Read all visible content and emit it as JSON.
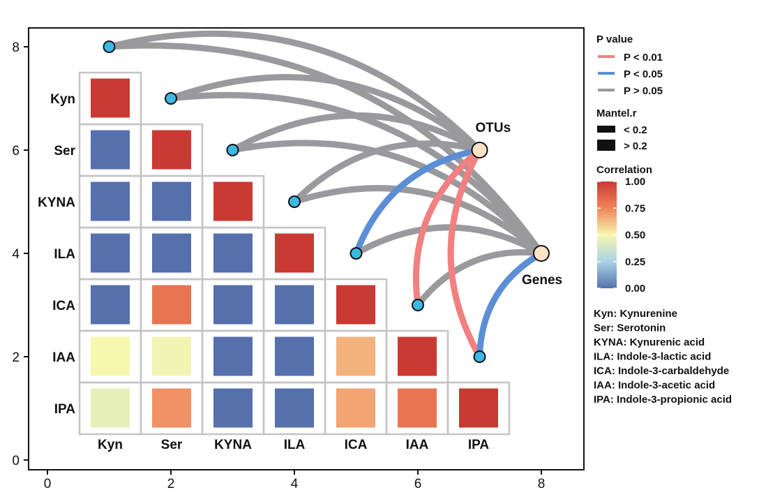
{
  "chart_data": {
    "type": "heatmap",
    "axes": {
      "x_ticks": [
        "0",
        "2",
        "4",
        "6",
        "8"
      ],
      "y_ticks": [
        "0",
        "2",
        "4",
        "6",
        "8"
      ],
      "xlim": [
        -0.5,
        8.5
      ],
      "ylim": [
        -0.1,
        8.4
      ]
    },
    "variables": [
      "Kyn",
      "Ser",
      "KYNA",
      "ILA",
      "ICA",
      "IAA",
      "IPA"
    ],
    "correlation_matrix": [
      {
        "row": "Kyn",
        "values": [
          1.0
        ]
      },
      {
        "row": "Ser",
        "values": [
          0.0,
          1.0
        ]
      },
      {
        "row": "KYNA",
        "values": [
          0.0,
          0.0,
          1.0
        ]
      },
      {
        "row": "ILA",
        "values": [
          0.0,
          0.0,
          0.0,
          1.0
        ]
      },
      {
        "row": "ICA",
        "values": [
          0.0,
          0.8,
          0.0,
          0.0,
          1.0
        ]
      },
      {
        "row": "IAA",
        "values": [
          0.5,
          0.48,
          0.0,
          0.0,
          0.65,
          1.0
        ]
      },
      {
        "row": "IPA",
        "values": [
          0.45,
          0.72,
          0.0,
          0.0,
          0.68,
          0.8,
          1.0
        ]
      }
    ],
    "metabolite_nodes": [
      {
        "name": "Kyn",
        "x": 1,
        "y": 8
      },
      {
        "name": "Ser",
        "x": 2,
        "y": 7
      },
      {
        "name": "KYNA",
        "x": 3,
        "y": 6
      },
      {
        "name": "ILA",
        "x": 4,
        "y": 5
      },
      {
        "name": "ICA",
        "x": 5,
        "y": 4
      },
      {
        "name": "IAA",
        "x": 6,
        "y": 3
      },
      {
        "name": "IPA",
        "x": 7,
        "y": 2
      }
    ],
    "target_nodes": [
      {
        "name": "OTUs",
        "x": 7,
        "y": 6
      },
      {
        "name": "Genes",
        "x": 8,
        "y": 4
      }
    ],
    "links": [
      {
        "from": "Kyn",
        "to": "OTUs",
        "p": "P > 0.05",
        "r": "> 0.2"
      },
      {
        "from": "Kyn",
        "to": "Genes",
        "p": "P > 0.05",
        "r": "> 0.2"
      },
      {
        "from": "Ser",
        "to": "OTUs",
        "p": "P > 0.05",
        "r": "> 0.2"
      },
      {
        "from": "Ser",
        "to": "Genes",
        "p": "P > 0.05",
        "r": "> 0.2"
      },
      {
        "from": "KYNA",
        "to": "OTUs",
        "p": "P > 0.05",
        "r": "> 0.2"
      },
      {
        "from": "KYNA",
        "to": "Genes",
        "p": "P > 0.05",
        "r": "> 0.2"
      },
      {
        "from": "ILA",
        "to": "OTUs",
        "p": "P > 0.05",
        "r": "> 0.2"
      },
      {
        "from": "ILA",
        "to": "Genes",
        "p": "P > 0.05",
        "r": "> 0.2"
      },
      {
        "from": "ICA",
        "to": "OTUs",
        "p": "P < 0.05",
        "r": "> 0.2"
      },
      {
        "from": "ICA",
        "to": "Genes",
        "p": "P > 0.05",
        "r": "> 0.2"
      },
      {
        "from": "IAA",
        "to": "OTUs",
        "p": "P < 0.01",
        "r": "> 0.2"
      },
      {
        "from": "IAA",
        "to": "Genes",
        "p": "P > 0.05",
        "r": "> 0.2"
      },
      {
        "from": "IPA",
        "to": "OTUs",
        "p": "P < 0.01",
        "r": "> 0.2"
      },
      {
        "from": "IPA",
        "to": "Genes",
        "p": "P < 0.05",
        "r": "> 0.2"
      }
    ],
    "legend": {
      "placement": "right",
      "p_value_title": "P value",
      "p_value_items": [
        {
          "label": "P < 0.01",
          "color": "#f28080"
        },
        {
          "label": "P < 0.05",
          "color": "#5b8ed6"
        },
        {
          "label": "P > 0.05",
          "color": "#9a999e"
        }
      ],
      "mantel_title": "Mantel.r",
      "mantel_items": [
        {
          "label": "< 0.2",
          "width": "thin"
        },
        {
          "label": "> 0.2",
          "width": "thick"
        }
      ],
      "correlation_title": "Correlation",
      "colorbar_ticks": [
        "1.00",
        "0.75",
        "0.50",
        "0.25",
        "0.00"
      ],
      "colorbar_range": [
        0,
        1
      ]
    },
    "abbreviations": [
      "Kyn: Kynurenine",
      "Ser: Serotonin",
      "KYNA: Kynurenic acid",
      "ILA: Indole-3-lactic acid",
      "ICA: Indole-3-carbaldehyde",
      "IAA: Indole-3-acetic acid",
      "IPA: Indole-3-propionic acid"
    ],
    "colors": {
      "high": "#c93a32",
      "upper": "#f0845a",
      "mid": "#f8f7b0",
      "lower": "#a9d3e4",
      "low": "#5570ad",
      "node_fill": "#3bb8e3",
      "target_fill": "#fde2c6",
      "grid": "#c4c4c4"
    }
  }
}
